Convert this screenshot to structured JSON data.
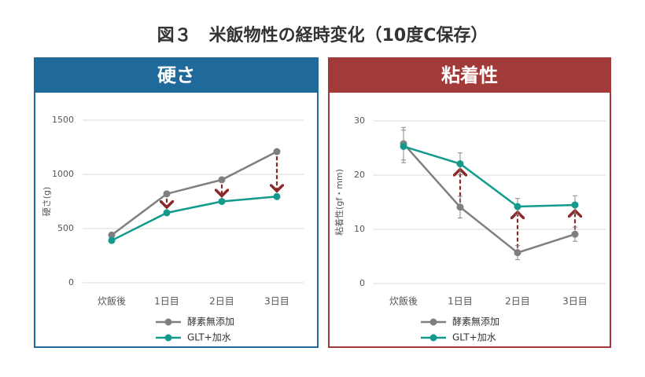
{
  "title": "図３　米飯物性の経時変化（10度C保存）",
  "chart_data": [
    {
      "type": "line",
      "title": "硬さ",
      "y_label": "硬さ(g)",
      "categories": [
        "炊飯後",
        "1日目",
        "2日目",
        "3日目"
      ],
      "ylim": [
        0,
        1500
      ],
      "yticks": [
        0,
        500,
        1000,
        1500
      ],
      "grid": true,
      "series": [
        {
          "name": "酵素無添加",
          "color": "#7f7f7f",
          "values": [
            440,
            820,
            950,
            1210
          ]
        },
        {
          "name": "GLT+加水",
          "color": "#139a8d",
          "values": [
            390,
            645,
            750,
            795
          ]
        }
      ]
    },
    {
      "type": "line",
      "title": "粘着性",
      "y_label": "粘着性(gf・mm)",
      "categories": [
        "炊飯後",
        "1日目",
        "2日目",
        "3日目"
      ],
      "ylim": [
        0,
        30
      ],
      "yticks": [
        0,
        10,
        20,
        30
      ],
      "grid": true,
      "series": [
        {
          "name": "酵素無添加",
          "color": "#7f7f7f",
          "values": [
            25.8,
            14.1,
            5.7,
            9.1
          ],
          "errors": [
            3,
            2,
            1.3,
            1.3
          ]
        },
        {
          "name": "GLT+加水",
          "color": "#139a8d",
          "values": [
            25.3,
            22.1,
            14.2,
            14.5
          ],
          "errors": [
            3,
            2,
            1.5,
            1.7
          ]
        }
      ]
    }
  ]
}
